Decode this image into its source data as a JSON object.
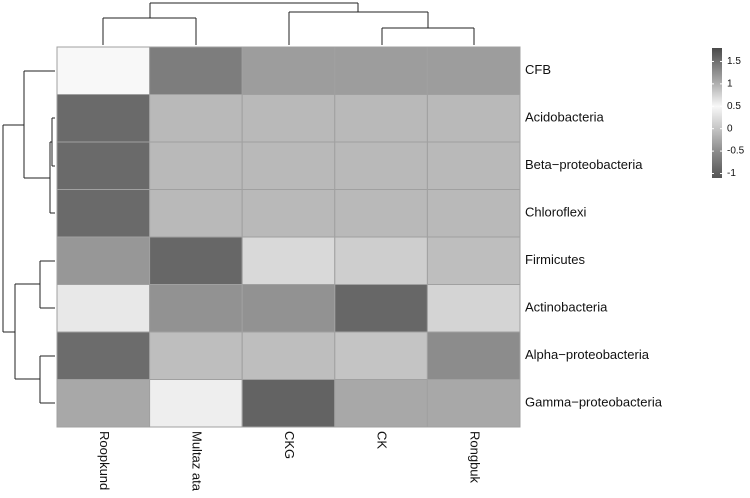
{
  "chart_data": {
    "type": "heatmap",
    "rows": [
      "CFB",
      "Acidobacteria",
      "Beta−proteobacteria",
      "Chloroflexi",
      "Firmicutes",
      "Actinobacteria",
      "Alpha−proteobacteria",
      "Gamma−proteobacteria"
    ],
    "columns": [
      "Roopkund",
      "Multaz ata",
      "CKG",
      "CK",
      "Rongbuk"
    ],
    "values": [
      [
        0.5,
        1.4,
        -0.35,
        -0.35,
        -0.35
      ],
      [
        1.55,
        -0.1,
        -0.1,
        -0.1,
        -0.1
      ],
      [
        1.55,
        -0.1,
        -0.1,
        -0.1,
        -0.1
      ],
      [
        1.55,
        -0.1,
        -0.1,
        -0.1,
        -0.1
      ],
      [
        -0.4,
        -0.9,
        0.2,
        0.1,
        -0.05
      ],
      [
        0.35,
        -0.45,
        -0.45,
        -0.9,
        0.15
      ],
      [
        -0.85,
        -0.05,
        -0.05,
        0,
        -0.5
      ],
      [
        -0.25,
        0.4,
        -0.95,
        -0.25,
        -0.25
      ]
    ],
    "colorscale": [
      [
        -1.1,
        "#555555"
      ],
      [
        -0.5,
        "#8c8c8c"
      ],
      [
        0,
        "#c4c4c4"
      ],
      [
        0.5,
        "#f8f8f8"
      ],
      [
        1,
        "#b0b0b0"
      ],
      [
        1.8,
        "#4a4a4a"
      ]
    ],
    "colorbar_lim": [
      -1.1,
      1.8
    ],
    "colorbar_ticks": [
      1.5,
      1,
      0.5,
      0,
      -0.5,
      -1
    ]
  }
}
